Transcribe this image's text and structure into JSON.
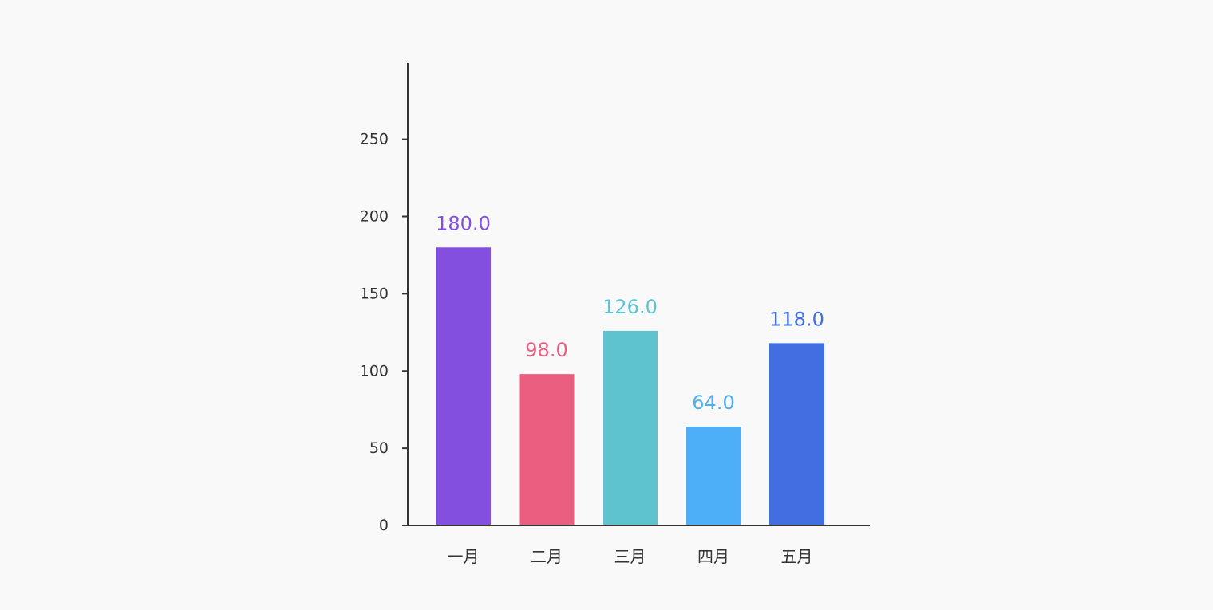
{
  "chart_data": {
    "type": "bar",
    "categories": [
      "一月",
      "二月",
      "三月",
      "四月",
      "五月"
    ],
    "values": [
      180.0,
      98.0,
      126.0,
      64.0,
      118.0
    ],
    "value_labels": [
      "180.0",
      "98.0",
      "126.0",
      "64.0",
      "118.0"
    ],
    "colors": [
      "#834fde",
      "#ea5e80",
      "#5ec3cf",
      "#4daff7",
      "#416ee0"
    ],
    "y_ticks": [
      0,
      50,
      100,
      150,
      200,
      250
    ],
    "ylim": [
      0,
      300
    ],
    "title": "",
    "xlabel": "",
    "ylabel": "",
    "grid": false,
    "legend": "none"
  }
}
